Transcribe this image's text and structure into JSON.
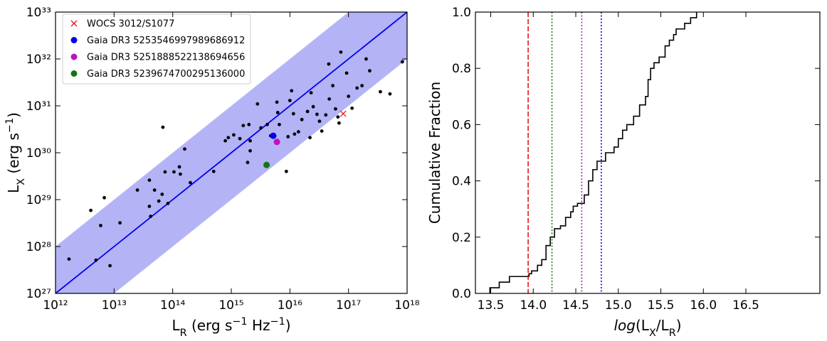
{
  "chart_data": [
    {
      "type": "scatter",
      "xscale": "log",
      "yscale": "log",
      "xlabel": [
        {
          "text": "L"
        },
        {
          "text": "R",
          "shift": "sub"
        },
        {
          "text": " (erg s"
        },
        {
          "text": "−1",
          "shift": "super"
        },
        {
          "text": " Hz"
        },
        {
          "text": "−1",
          "shift": "super"
        },
        {
          "text": ")"
        }
      ],
      "ylabel": [
        {
          "text": "L"
        },
        {
          "text": "X",
          "shift": "sub"
        },
        {
          "text": " (erg s"
        },
        {
          "text": "−1",
          "shift": "super"
        },
        {
          "text": ")"
        }
      ],
      "xlim": [
        1000000000000.0,
        1e+18
      ],
      "ylim": [
        1e+27,
        1e+33
      ],
      "xticks": [
        {
          "value": 1000000000000.0,
          "label": "10¹²"
        },
        {
          "value": 10000000000000.0,
          "label": "10¹³"
        },
        {
          "value": 100000000000000.0,
          "label": "10¹⁴"
        },
        {
          "value": 1000000000000000.0,
          "label": "10¹⁵"
        },
        {
          "value": 1e+16,
          "label": "10¹⁶"
        },
        {
          "value": 1e+17,
          "label": "10¹⁷"
        },
        {
          "value": 1e+18,
          "label": "10¹⁸"
        }
      ],
      "yticks": [
        {
          "value": 1e+27,
          "label": "10²⁷"
        },
        {
          "value": 1e+28,
          "label": "10²⁸"
        },
        {
          "value": 1e+29,
          "label": "10²⁹"
        },
        {
          "value": 1e+30,
          "label": "10³⁰"
        },
        {
          "value": 1e+31,
          "label": "10³¹"
        },
        {
          "value": 1e+32,
          "label": "10³²"
        },
        {
          "value": 1e+33,
          "label": "10³³"
        }
      ],
      "band": {
        "x": [
          1000000000000.0,
          1e+18
        ],
        "lower": [
          1e+26,
          1e+32
        ],
        "upper": [
          1e+28,
          1e+34
        ],
        "color": "#b3b3f6"
      },
      "line": {
        "x": [
          1000000000000.0,
          1e+18
        ],
        "values": [
          1e+27,
          1e+33
        ],
        "color": "#0000ee"
      },
      "legend": "upper left",
      "series": [
        {
          "color": "#000000",
          "marker": "dot",
          "x": [
            1700000000000.0,
            4000000000000.0,
            4900000000000.0,
            5900000000000.0,
            6800000000000.0,
            8500000000000.0,
            12600000000000.0,
            25000000000000.0,
            40000000000000.0,
            40000000000000.0,
            42000000000000.0,
            49000000000000.0,
            58000000000000.0,
            68000000000000.0,
            74000000000000.0,
            66000000000000.0,
            83000000000000.0,
            105000000000000.0,
            130000000000000.0,
            135000000000000.0,
            160000000000000.0,
            200000000000000.0,
            500000000000000.0,
            790000000000000.0,
            890000000000000.0,
            1100000000000000.0,
            1600000000000000.0,
            1900000000000000.0,
            2000000000000000.0,
            2100000000000000.0,
            2100000000000000.0,
            2800000000000000.0,
            3200000000000000.0,
            4100000000000000.0,
            4700000000000000.0,
            6000000000000000.0,
            6200000000000000.0,
            6600000000000000.0,
            8700000000000000.0,
            9300000000000000.0,
            1e+16,
            1.07e+16,
            1.15e+16,
            1.2e+16,
            1.4e+16,
            1.6e+16,
            2e+16,
            2.2e+16,
            2.3e+16,
            2.5e+16,
            2.9e+16,
            3.2e+16,
            3.5e+16,
            4.1e+16,
            4.7e+16,
            5.4e+16,
            6e+16,
            6.6e+16,
            6.9e+16,
            7.4e+16,
            4.6e+16,
            9.3e+16,
            1e+17,
            1.15e+17,
            1.4e+17,
            1.7e+17,
            2e+17,
            2.3e+17,
            3.5e+17,
            5.1e+17,
            8.3e+17,
            1400000000000000.0
          ],
          "values": [
            5.4e+27,
            5.9e+28,
            5.1e+27,
            2.8e+28,
            1.1e+29,
            3.9e+27,
            3.2e+28,
            1.6e+29,
            2.6e+29,
            7.2e+28,
            4.4e+28,
            1.6e+29,
            9.3e+28,
            3.5e+30,
            3.9e+29,
            1.3e+29,
            8.3e+28,
            3.9e+29,
            5e+29,
            3.5e+29,
            1.2e+30,
            2.3e+29,
            4e+29,
            1.8e+30,
            2.1e+30,
            2.4e+30,
            3.8e+30,
            6.2e+29,
            4e+30,
            1.8e+30,
            1.1e+30,
            1.1e+31,
            3.4e+30,
            4e+30,
            2.3e+30,
            1.2e+31,
            7.2e+30,
            4e+30,
            4e+29,
            2.2e+30,
            1.3e+31,
            2.1e+31,
            6.8e+30,
            2.5e+30,
            2.8e+30,
            5.1e+30,
            7.6e+30,
            2.1e+30,
            1.9e+31,
            9.6e+30,
            6.6e+30,
            4.7e+30,
            2.9e+30,
            6.4e+30,
            1.4e+31,
            2.7e+31,
            8.6e+30,
            5.8e+30,
            4.3e+30,
            1.4e+32,
            7.8e+31,
            5e+31,
            1.6e+31,
            8.9e+30,
            2.4e+31,
            2.7e+31,
            1e+32,
            5.6e+31,
            2e+31,
            1.8e+31,
            8.7e+31,
            2e+30
          ]
        },
        {
          "name": "WOCS 3012/S1077",
          "color": "#e8141c",
          "marker": "x",
          "x": [
            8.1e+16
          ],
          "values": [
            6.8e+30
          ]
        },
        {
          "name": "Gaia DR3 5253546997989686912",
          "color": "#0000ee",
          "marker": "dot",
          "x": [
            5200000000000000.0
          ],
          "values": [
            2.3e+30
          ]
        },
        {
          "name": "Gaia DR3 5251888522138694656",
          "color": "#c010c0",
          "marker": "dot",
          "x": [
            6000000000000000.0
          ],
          "values": [
            1.7e+30
          ]
        },
        {
          "name": "Gaia DR3 5239674700295136000",
          "color": "#107810",
          "marker": "dot",
          "x": [
            4000000000000000.0
          ],
          "values": [
            5.5e+29
          ]
        }
      ]
    },
    {
      "type": "step",
      "color": "#000000",
      "xlabel": [
        {
          "text": "log",
          "style": "italic"
        },
        {
          "text": "(L"
        },
        {
          "text": "X",
          "shift": "sub"
        },
        {
          "text": "/L"
        },
        {
          "text": "R",
          "shift": "sub"
        },
        {
          "text": ")"
        }
      ],
      "ylabel": [
        {
          "text": "Cumulative Fraction"
        }
      ],
      "xlim": [
        13.32,
        17.37
      ],
      "ylim": [
        0,
        1
      ],
      "xticks": [
        13.5,
        {
          "value": 14,
          "label": "14.0"
        },
        14.5,
        {
          "value": 15,
          "label": "15.0"
        },
        15.5,
        {
          "value": 16,
          "label": "16.0"
        },
        16.5
      ],
      "yticks": [
        {
          "value": 0,
          "label": "0.0"
        },
        0.2,
        0.4,
        0.6,
        0.8,
        {
          "value": 1,
          "label": "1.0"
        }
      ],
      "x": [
        13.49,
        13.6,
        13.72,
        13.95,
        13.98,
        14.05,
        14.1,
        14.15,
        14.2,
        14.25,
        14.32,
        14.38,
        14.44,
        14.47,
        14.52,
        14.6,
        14.65,
        14.7,
        14.75,
        14.85,
        14.95,
        15.0,
        15.05,
        15.1,
        15.18,
        15.25,
        15.32,
        15.35,
        15.38,
        15.42,
        15.48,
        15.55,
        15.6,
        15.65,
        15.68,
        15.78,
        15.85,
        15.92
      ],
      "values": [
        0.02,
        0.04,
        0.06,
        0.07,
        0.08,
        0.1,
        0.12,
        0.17,
        0.2,
        0.23,
        0.24,
        0.27,
        0.29,
        0.31,
        0.32,
        0.35,
        0.4,
        0.44,
        0.47,
        0.5,
        0.52,
        0.55,
        0.58,
        0.6,
        0.63,
        0.67,
        0.7,
        0.76,
        0.8,
        0.82,
        0.84,
        0.88,
        0.9,
        0.92,
        0.94,
        0.96,
        0.98,
        1.0
      ],
      "vlines": [
        {
          "x": 13.94,
          "color": "#e8141c",
          "dash": "dashed"
        },
        {
          "x": 14.22,
          "color": "#107810",
          "dash": "dotted"
        },
        {
          "x": 14.57,
          "color": "#c010c0",
          "dash": "dotted"
        },
        {
          "x": 14.8,
          "color": "#0000ee",
          "dash": "dotted"
        }
      ]
    }
  ]
}
